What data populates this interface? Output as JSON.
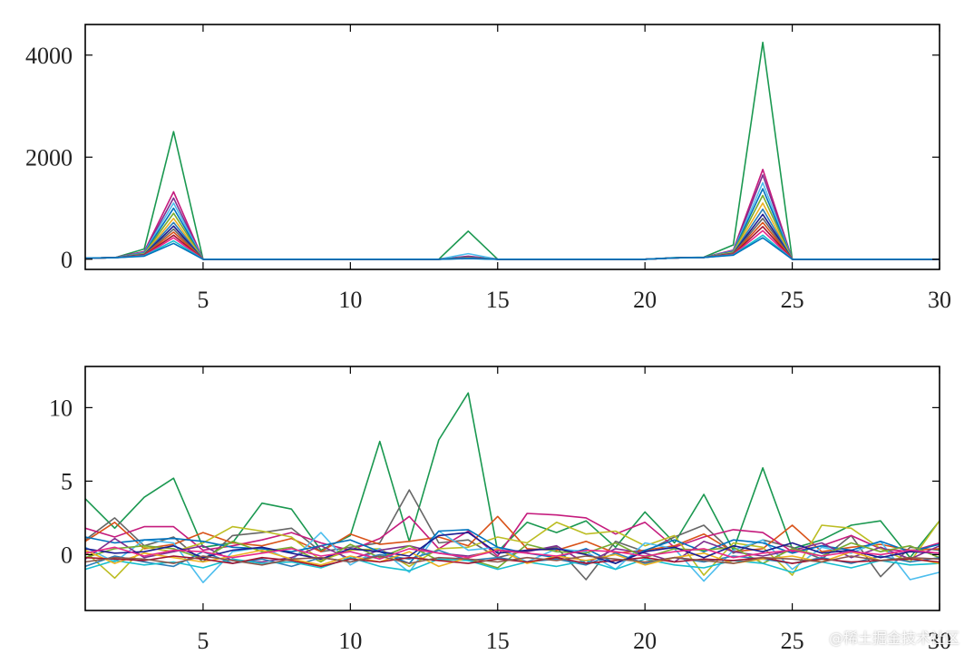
{
  "watermark": "@稀土掘金技术社区",
  "palette": [
    "#0072BD",
    "#D95319",
    "#EDB120",
    "#7E2F8E",
    "#77AC30",
    "#4DBEEE",
    "#A2142F",
    "#1a9850",
    "#c51b7d",
    "#666666",
    "#17becf",
    "#bcbd22",
    "#e7298a",
    "#2c7fb8",
    "#1b1b8f",
    "#8c564b"
  ],
  "chart_data": [
    {
      "type": "line",
      "title": "",
      "xlabel": "",
      "ylabel": "",
      "xlim": [
        1,
        30
      ],
      "ylim": [
        -200,
        4600
      ],
      "xticks": [
        5,
        10,
        15,
        20,
        25,
        30
      ],
      "yticks": [
        0,
        2000,
        4000
      ],
      "grid": false,
      "x": [
        1,
        2,
        3,
        4,
        5,
        6,
        7,
        8,
        9,
        10,
        11,
        12,
        13,
        14,
        15,
        16,
        17,
        18,
        19,
        20,
        21,
        22,
        23,
        24,
        25,
        26,
        27,
        28,
        29,
        30
      ],
      "series": [
        {
          "color": "#1a9850",
          "values": [
            20,
            30,
            200,
            2500,
            0,
            0,
            0,
            0,
            0,
            0,
            0,
            0,
            0,
            550,
            0,
            0,
            0,
            0,
            0,
            0,
            30,
            40,
            280,
            4250,
            0,
            0,
            0,
            0,
            0,
            0
          ]
        },
        {
          "color": "#c51b7d",
          "values": [
            20,
            30,
            150,
            1320,
            0,
            0,
            0,
            0,
            0,
            0,
            0,
            0,
            0,
            60,
            0,
            0,
            0,
            0,
            0,
            0,
            25,
            35,
            180,
            1760,
            0,
            0,
            0,
            0,
            0,
            0
          ]
        },
        {
          "color": "#7E2F8E",
          "values": [
            20,
            30,
            140,
            1200,
            0,
            0,
            0,
            0,
            0,
            0,
            0,
            0,
            0,
            50,
            0,
            0,
            0,
            0,
            0,
            0,
            25,
            35,
            170,
            1650,
            0,
            0,
            0,
            0,
            0,
            0
          ]
        },
        {
          "color": "#4DBEEE",
          "values": [
            20,
            30,
            130,
            1100,
            0,
            0,
            0,
            0,
            0,
            0,
            0,
            0,
            0,
            110,
            0,
            0,
            0,
            0,
            0,
            0,
            25,
            35,
            160,
            1500,
            0,
            0,
            0,
            0,
            0,
            0
          ]
        },
        {
          "color": "#0072BD",
          "values": [
            20,
            30,
            120,
            1000,
            0,
            0,
            0,
            0,
            0,
            0,
            0,
            0,
            0,
            40,
            0,
            0,
            0,
            0,
            0,
            0,
            25,
            35,
            150,
            1380,
            0,
            0,
            0,
            0,
            0,
            0
          ]
        },
        {
          "color": "#77AC30",
          "values": [
            20,
            30,
            110,
            900,
            0,
            0,
            0,
            0,
            0,
            0,
            0,
            0,
            0,
            35,
            0,
            0,
            0,
            0,
            0,
            0,
            25,
            35,
            140,
            1250,
            0,
            0,
            0,
            0,
            0,
            0
          ]
        },
        {
          "color": "#EDB120",
          "values": [
            20,
            30,
            100,
            800,
            0,
            0,
            0,
            0,
            0,
            0,
            0,
            0,
            0,
            30,
            0,
            0,
            0,
            0,
            0,
            0,
            25,
            35,
            130,
            1100,
            0,
            0,
            0,
            0,
            0,
            0
          ]
        },
        {
          "color": "#2c7fb8",
          "values": [
            20,
            30,
            95,
            720,
            0,
            0,
            0,
            0,
            0,
            0,
            0,
            0,
            0,
            30,
            0,
            0,
            0,
            0,
            0,
            0,
            25,
            35,
            120,
            980,
            0,
            0,
            0,
            0,
            0,
            0
          ]
        },
        {
          "color": "#1b1b8f",
          "values": [
            20,
            30,
            90,
            650,
            0,
            0,
            0,
            0,
            0,
            0,
            0,
            0,
            0,
            25,
            0,
            0,
            0,
            0,
            0,
            0,
            25,
            35,
            115,
            880,
            0,
            0,
            0,
            0,
            0,
            0
          ]
        },
        {
          "color": "#666666",
          "values": [
            20,
            30,
            85,
            590,
            0,
            0,
            0,
            0,
            0,
            0,
            0,
            0,
            0,
            25,
            0,
            0,
            0,
            0,
            0,
            0,
            25,
            35,
            110,
            800,
            0,
            0,
            0,
            0,
            0,
            0
          ]
        },
        {
          "color": "#D95319",
          "values": [
            20,
            30,
            80,
            530,
            0,
            0,
            0,
            0,
            0,
            0,
            0,
            0,
            0,
            20,
            0,
            0,
            0,
            0,
            0,
            0,
            25,
            35,
            100,
            720,
            0,
            0,
            0,
            0,
            0,
            0
          ]
        },
        {
          "color": "#A2142F",
          "values": [
            20,
            30,
            75,
            470,
            0,
            0,
            0,
            0,
            0,
            0,
            0,
            0,
            0,
            20,
            0,
            0,
            0,
            0,
            0,
            0,
            25,
            35,
            95,
            640,
            0,
            0,
            0,
            0,
            0,
            0
          ]
        },
        {
          "color": "#e7298a",
          "values": [
            20,
            30,
            70,
            420,
            0,
            0,
            0,
            0,
            0,
            0,
            0,
            0,
            0,
            18,
            0,
            0,
            0,
            0,
            0,
            0,
            25,
            35,
            90,
            560,
            0,
            0,
            0,
            0,
            0,
            0
          ]
        },
        {
          "color": "#17becf",
          "values": [
            20,
            30,
            65,
            360,
            0,
            0,
            0,
            0,
            0,
            0,
            0,
            0,
            0,
            15,
            0,
            0,
            0,
            0,
            0,
            0,
            25,
            35,
            85,
            470,
            0,
            0,
            0,
            0,
            0,
            0
          ]
        },
        {
          "color": "#0072BD",
          "values": [
            20,
            30,
            60,
            310,
            0,
            0,
            0,
            0,
            0,
            0,
            0,
            0,
            0,
            12,
            0,
            0,
            0,
            0,
            0,
            0,
            25,
            35,
            80,
            420,
            0,
            0,
            0,
            0,
            0,
            0
          ]
        }
      ]
    },
    {
      "type": "line",
      "title": "",
      "xlabel": "",
      "ylabel": "",
      "xlim": [
        1,
        30
      ],
      "ylim": [
        -3.8,
        12.8
      ],
      "xticks": [
        5,
        10,
        15,
        20,
        25,
        30
      ],
      "yticks": [
        0,
        5,
        10
      ],
      "grid": false,
      "x": [
        1,
        2,
        3,
        4,
        5,
        6,
        7,
        8,
        9,
        10,
        11,
        12,
        13,
        14,
        15,
        16,
        17,
        18,
        19,
        20,
        21,
        22,
        23,
        24,
        25,
        26,
        27,
        28,
        29,
        30
      ],
      "series": [
        {
          "color": "#1a9850",
          "values": [
            3.8,
            1.8,
            3.9,
            5.2,
            0.5,
            0.8,
            3.5,
            3.1,
            0.3,
            1.3,
            7.7,
            0.9,
            7.8,
            11.0,
            0.2,
            2.2,
            1.5,
            2.3,
            0.5,
            2.9,
            0.8,
            4.1,
            0.3,
            5.9,
            0.4,
            1.0,
            2.0,
            2.3,
            -0.2,
            2.3
          ]
        },
        {
          "color": "#666666",
          "values": [
            1.0,
            2.5,
            0.6,
            1.2,
            -0.5,
            1.3,
            1.5,
            1.8,
            0.2,
            0.5,
            0.8,
            4.4,
            0.8,
            1.0,
            -0.2,
            0.3,
            0.5,
            -1.7,
            0.9,
            0.2,
            1.2,
            2.0,
            0.1,
            1.0,
            0.5,
            -0.3,
            1.3,
            -1.5,
            0.5,
            0.3
          ]
        },
        {
          "color": "#c51b7d",
          "values": [
            1.8,
            1.2,
            1.9,
            1.9,
            0.3,
            0.6,
            1.0,
            1.5,
            0.8,
            0.3,
            1.1,
            2.6,
            0.4,
            1.6,
            -0.1,
            2.8,
            2.7,
            2.5,
            1.4,
            2.2,
            0.5,
            1.2,
            1.7,
            1.5,
            0.2,
            0.6,
            1.3,
            0.4,
            0.2,
            0.8
          ]
        },
        {
          "color": "#D95319",
          "values": [
            0.9,
            2.2,
            0.4,
            0.7,
            1.5,
            0.8,
            0.6,
            1.1,
            0.2,
            1.4,
            0.7,
            0.9,
            1.2,
            0.6,
            2.6,
            0.4,
            0.3,
            0.9,
            0.1,
            0.3,
            0.6,
            1.4,
            0.2,
            0.4,
            2.0,
            0.2,
            0.5,
            0.7,
            0.3,
            0.4
          ]
        },
        {
          "color": "#bcbd22",
          "values": [
            0.2,
            -1.6,
            0.5,
            0.2,
            0.8,
            1.9,
            1.6,
            1.2,
            -0.4,
            0.3,
            0.4,
            -0.8,
            0.4,
            0.5,
            1.2,
            0.8,
            2.2,
            1.4,
            1.6,
            0.6,
            1.3,
            -1.4,
            0.8,
            0.5,
            -1.4,
            2.0,
            1.8,
            0.4,
            -0.5,
            2.3
          ]
        },
        {
          "color": "#4DBEEE",
          "values": [
            0.5,
            -0.5,
            1.0,
            0.8,
            -1.9,
            0.2,
            0.5,
            -0.4,
            1.5,
            -0.7,
            0.4,
            -1.2,
            1.6,
            0.3,
            0.5,
            -0.5,
            0.4,
            0.2,
            -1.0,
            0.8,
            0.4,
            -1.8,
            0.3,
            1.0,
            -1.0,
            0.5,
            0.1,
            0.9,
            -1.7,
            -1.2
          ]
        },
        {
          "color": "#0072BD",
          "values": [
            1.2,
            0.8,
            1.0,
            1.1,
            0.9,
            0.5,
            0.4,
            0.2,
            0.6,
            1.0,
            0.2,
            -0.6,
            1.6,
            1.7,
            0.5,
            0.1,
            -0.2,
            0.4,
            -0.6,
            0.3,
            1.0,
            0.2,
            1.0,
            0.8,
            0.1,
            0.6,
            0.3,
            0.9,
            0.2,
            0.7
          ]
        },
        {
          "color": "#7E2F8E",
          "values": [
            -0.3,
            1.1,
            -0.2,
            0.2,
            0.6,
            -0.4,
            -0.5,
            -0.2,
            0.6,
            -0.3,
            0.3,
            0.6,
            0.1,
            -0.1,
            0.3,
            0.2,
            0.6,
            -0.6,
            0.4,
            0.1,
            -0.5,
            0.9,
            0.2,
            -0.1,
            0.3,
            0.8,
            -0.2,
            0.5,
            -0.3,
            0.6
          ]
        },
        {
          "color": "#77AC30",
          "values": [
            -0.2,
            0.4,
            0.6,
            0.4,
            -0.3,
            0.9,
            0.2,
            0.5,
            -0.5,
            0.7,
            -0.2,
            0.6,
            -0.4,
            -0.3,
            -0.9,
            0.7,
            0.2,
            0.1,
            0.8,
            -0.2,
            0.4,
            0.3,
            0.5,
            -0.6,
            0.4,
            -0.1,
            0.8,
            0.2,
            0.6,
            -0.2
          ]
        },
        {
          "color": "#2c7fb8",
          "values": [
            -0.8,
            -0.1,
            -0.5,
            -0.8,
            0.2,
            -0.6,
            -0.3,
            -0.8,
            -0.2,
            -0.5,
            0.0,
            -0.3,
            0.3,
            -0.4,
            -0.2,
            -0.5,
            -0.3,
            -0.7,
            0.1,
            -0.6,
            -0.2,
            -0.5,
            -0.1,
            -0.3,
            -0.6,
            -0.2,
            -0.6,
            -0.1,
            -0.5,
            -0.2
          ]
        },
        {
          "color": "#17becf",
          "values": [
            -1.0,
            -0.4,
            -0.7,
            -0.5,
            -0.9,
            -0.3,
            -0.6,
            -0.5,
            -0.9,
            -0.2,
            -0.8,
            -1.1,
            -0.3,
            -0.4,
            -1.0,
            -0.5,
            -0.8,
            -0.4,
            -1.0,
            -0.3,
            -0.7,
            -0.9,
            -0.4,
            -0.6,
            -1.2,
            -0.5,
            -0.9,
            -0.4,
            -0.7,
            -0.6
          ]
        },
        {
          "color": "#EDB120",
          "values": [
            0.3,
            -0.6,
            0.1,
            -0.2,
            -0.5,
            -0.1,
            0.3,
            -0.3,
            -0.7,
            -0.1,
            -0.5,
            0.2,
            -0.8,
            -0.2,
            0.4,
            -0.6,
            -0.1,
            -0.4,
            0.0,
            -0.7,
            -0.2,
            0.1,
            -0.6,
            -0.3,
            -0.1,
            -0.5,
            0.2,
            -0.4,
            -0.2,
            -0.6
          ]
        },
        {
          "color": "#A2142F",
          "values": [
            -0.2,
            -0.3,
            -0.4,
            -0.1,
            -0.3,
            -0.6,
            -0.2,
            -0.4,
            -0.8,
            -0.3,
            -0.5,
            -0.2,
            -0.4,
            -0.6,
            -0.3,
            -0.5,
            -0.2,
            -0.6,
            -0.4,
            -0.2,
            -0.5,
            -0.3,
            -0.4,
            -0.2,
            -0.6,
            -0.3,
            -0.5,
            -0.4,
            -0.3,
            -0.5
          ]
        },
        {
          "color": "#1b1b8f",
          "values": [
            0.4,
            0.1,
            0.2,
            0.6,
            -0.2,
            0.3,
            0.5,
            0.1,
            -0.3,
            0.4,
            0.2,
            -0.1,
            1.3,
            1.5,
            0.1,
            0.3,
            0.4,
            0.0,
            -0.6,
            0.2,
            0.5,
            -0.2,
            0.6,
            0.2,
            0.8,
            0.1,
            0.3,
            -0.2,
            0.2,
            0.1
          ]
        },
        {
          "color": "#e7298a",
          "values": [
            0.1,
            0.5,
            -0.1,
            0.3,
            0.2,
            -0.2,
            0.1,
            0.4,
            -0.1,
            0.2,
            -0.3,
            0.4,
            0.1,
            -0.2,
            0.3,
            0.1,
            -0.1,
            0.3,
            0.2,
            -0.1,
            0.2,
            0.4,
            -0.2,
            0.1,
            0.3,
            -0.1,
            0.2,
            0.0,
            0.3,
            0.1
          ]
        },
        {
          "color": "#8c564b",
          "values": [
            -0.5,
            -0.2,
            -0.3,
            -0.6,
            -0.1,
            -0.4,
            -0.7,
            -0.3,
            -0.2,
            -0.5,
            -0.1,
            -0.6,
            -0.2,
            -0.3,
            -0.5,
            -0.2,
            -0.4,
            -0.1,
            -0.3,
            -0.5,
            -0.2,
            -0.4,
            -0.6,
            -0.2,
            -0.3,
            -0.5,
            -0.1,
            -0.4,
            -0.2,
            -0.3
          ]
        }
      ]
    }
  ]
}
